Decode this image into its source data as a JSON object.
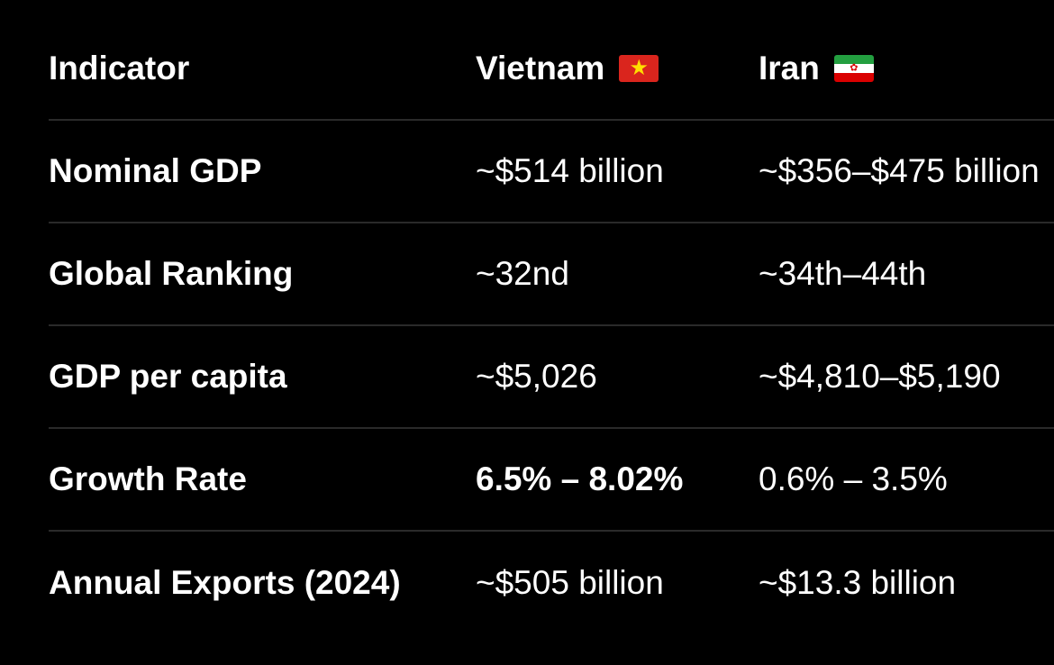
{
  "table": {
    "headers": {
      "indicator": "Indicator",
      "vietnam": "Vietnam",
      "iran": "Iran"
    },
    "flags": {
      "vietnam": {
        "icon": "vietnam-flag-icon",
        "colors": [
          "#da251d",
          "#ffde00"
        ]
      },
      "iran": {
        "icon": "iran-flag-icon",
        "colors": [
          "#239f40",
          "#ffffff",
          "#da0000"
        ]
      }
    },
    "rows": [
      {
        "indicator": "Nominal GDP",
        "vietnam": "~$514 billion",
        "iran": "~$356–$475 billion"
      },
      {
        "indicator": "Global Ranking",
        "vietnam": "~32nd",
        "iran": "~34th–44th"
      },
      {
        "indicator": "GDP per capita",
        "vietnam": "~$5,026",
        "iran": "~$4,810–$5,190"
      },
      {
        "indicator": "Growth Rate",
        "vietnam": "6.5% – 8.02%",
        "iran": "0.6% – 3.5%"
      },
      {
        "indicator": "Annual Exports (2024)",
        "vietnam": "~$505 billion",
        "iran": "~$13.3 billion"
      }
    ]
  }
}
